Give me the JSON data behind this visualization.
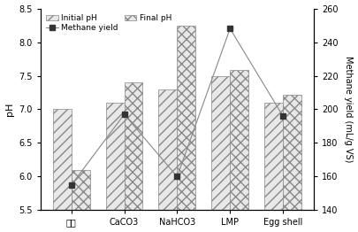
{
  "categories": [
    "对照",
    "CaCO3",
    "NaHCO3",
    "LMP",
    "Egg shell"
  ],
  "initial_pH": [
    7.0,
    7.1,
    7.3,
    7.5,
    7.1
  ],
  "final_pH": [
    6.1,
    7.4,
    8.25,
    7.58,
    7.22
  ],
  "methane_yield": [
    155,
    197,
    160,
    248,
    196
  ],
  "ylim_left": [
    5.5,
    8.5
  ],
  "ylim_right": [
    140,
    260
  ],
  "ylabel_left": "pH",
  "ylabel_right": "Methane yield (mL/g VS)",
  "yticks_left": [
    5.5,
    6.0,
    6.5,
    7.0,
    7.5,
    8.0,
    8.5
  ],
  "yticks_right": [
    140,
    160,
    180,
    200,
    220,
    240,
    260
  ],
  "legend_initial": "Initial pH",
  "legend_final": "Final pH",
  "legend_methane": "Methane yield",
  "bar_width": 0.35,
  "initial_hatch": "///",
  "final_hatch": "xxx",
  "bar_edgecolor": "#888888",
  "bar_facecolor": "#e8e8e8",
  "line_color": "#888888",
  "marker_color": "#333333",
  "background": "#f5f5f5"
}
